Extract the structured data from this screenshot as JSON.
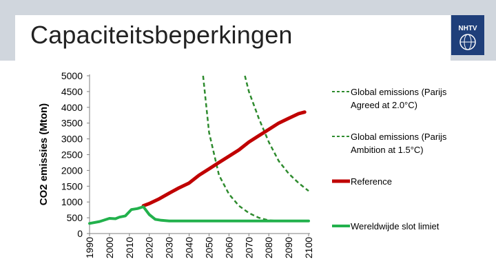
{
  "header": {
    "title": "Capaciteitsbeperkingen",
    "logo_text": "NHTV",
    "logo_color": "#1f3f7a"
  },
  "chart_data": {
    "type": "line",
    "title": "",
    "xlabel": "",
    "ylabel": "CO2 emissies (Mton)",
    "xlim": [
      1990,
      2100
    ],
    "ylim": [
      0,
      5000
    ],
    "x_ticks": [
      1990,
      2000,
      2010,
      2020,
      2030,
      2040,
      2050,
      2060,
      2070,
      2080,
      2090,
      2100
    ],
    "y_ticks": [
      0,
      500,
      1000,
      1500,
      2000,
      2500,
      3000,
      3500,
      4000,
      4500,
      5000
    ],
    "legend_position": "right",
    "series": [
      {
        "name": "Global emissions (Parijs Agreed at 2.0°C)",
        "style": "dashed",
        "color": "#2e8b2e",
        "x": [
          2047,
          2050,
          2055,
          2060,
          2065,
          2070,
          2075,
          2080,
          2085,
          2090,
          2095,
          2100
        ],
        "y": [
          5000,
          3200,
          1850,
          1250,
          880,
          650,
          500,
          420,
          400,
          400,
          400,
          400
        ]
      },
      {
        "name": "Global emissions (Parijs Ambition at 1.5°C)",
        "style": "dashed",
        "color": "#2e8b2e",
        "x": [
          2068,
          2070,
          2075,
          2080,
          2085,
          2090,
          2095,
          2100
        ],
        "y": [
          5000,
          4500,
          3650,
          2900,
          2300,
          1900,
          1600,
          1350
        ]
      },
      {
        "name": "Reference",
        "style": "solid",
        "color": "#c00000",
        "x": [
          2017,
          2020,
          2025,
          2030,
          2035,
          2040,
          2045,
          2050,
          2055,
          2060,
          2065,
          2070,
          2075,
          2080,
          2085,
          2090,
          2095,
          2098
        ],
        "y": [
          880,
          950,
          1100,
          1280,
          1450,
          1600,
          1850,
          2050,
          2250,
          2450,
          2650,
          2900,
          3100,
          3300,
          3500,
          3650,
          3800,
          3850
        ]
      },
      {
        "name": "Wereldwijde slot limiet",
        "style": "solid",
        "color": "#22b14c",
        "x": [
          1990,
          1995,
          2000,
          2003,
          2005,
          2008,
          2011,
          2014,
          2017,
          2020,
          2023,
          2026,
          2030,
          2035,
          2040,
          2050,
          2060,
          2070,
          2080,
          2090,
          2100
        ],
        "y": [
          320,
          380,
          480,
          470,
          520,
          560,
          760,
          790,
          850,
          600,
          450,
          420,
          400,
          400,
          400,
          400,
          400,
          400,
          400,
          400,
          400
        ]
      }
    ]
  }
}
